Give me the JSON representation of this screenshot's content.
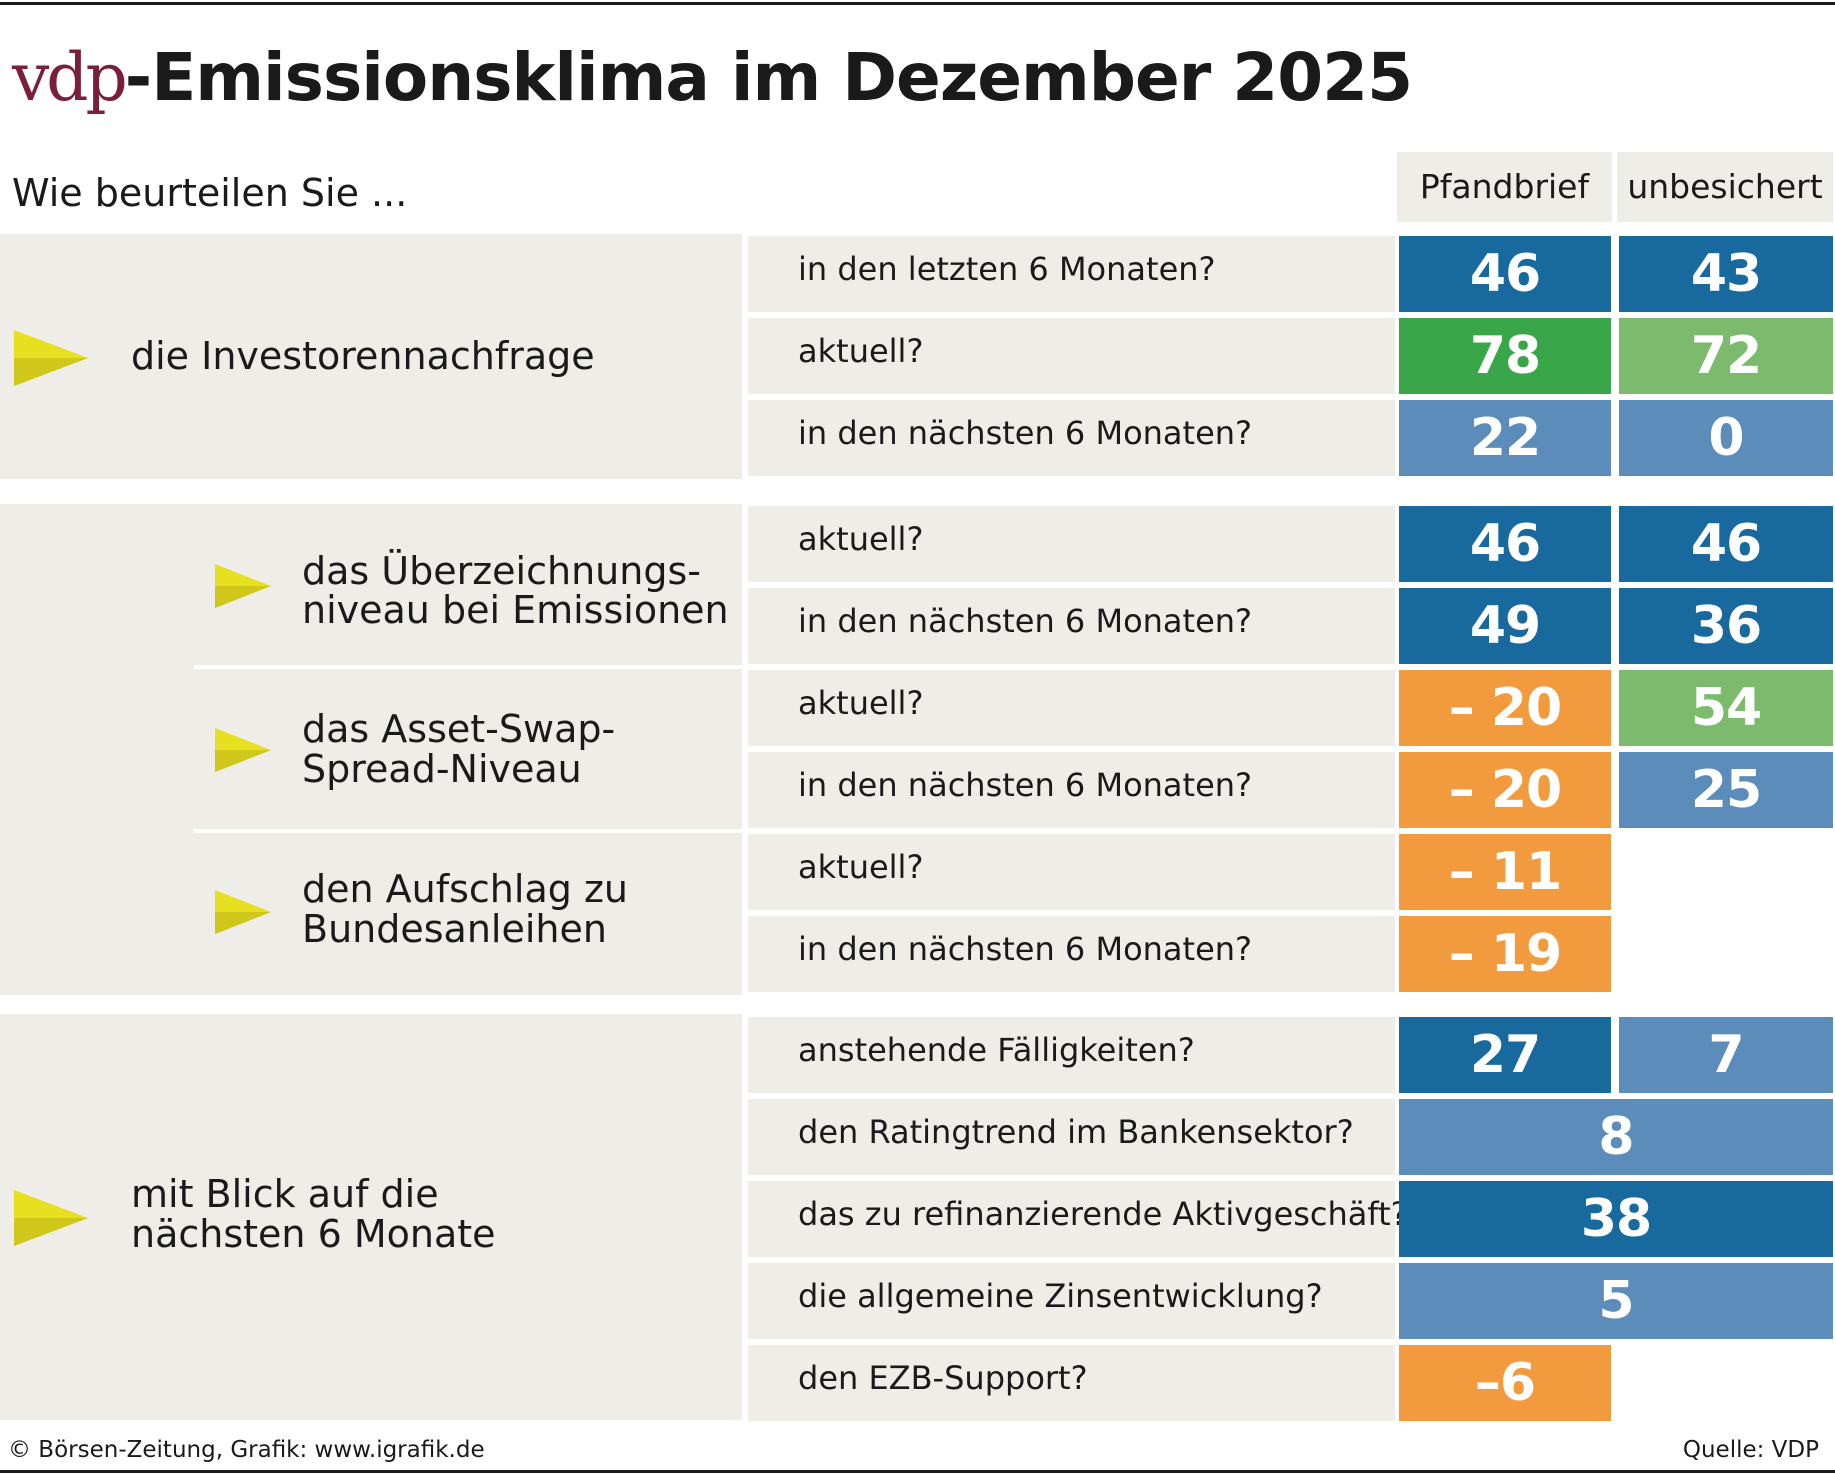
{
  "title": {
    "brand": "vdp",
    "rest": "-Emissionsklima im Dezember 2025"
  },
  "question": "Wie beurteilen Sie ...",
  "columns": [
    "Pfandbrief",
    "unbesichert"
  ],
  "colors": {
    "dark_blue": "#17699e",
    "mid_blue": "#5b8cba",
    "dark_green": "#3aa64a",
    "light_green": "#7cbb6e",
    "orange": "#f29b3e",
    "panel_bg": "#eeede7",
    "arrow_yellow": "#e6e021",
    "brand": "#7a1f3a"
  },
  "groups": [
    {
      "label_lines": [
        "die Investorennachfrage"
      ]
    },
    {
      "label_lines": [
        "das Überzeichnungs-",
        "niveau bei Emissionen"
      ]
    },
    {
      "label_lines": [
        "das Asset-Swap-",
        "Spread-Niveau"
      ]
    },
    {
      "label_lines": [
        "den Aufschlag zu",
        "Bundesanleihen"
      ]
    },
    {
      "label_lines": [
        "mit Blick auf die",
        "nächsten 6 Monate"
      ]
    }
  ],
  "chart_data": {
    "type": "table",
    "title": "vdp-Emissionsklima im Dezember 2025",
    "columns": [
      "Pfandbrief",
      "unbesichert"
    ],
    "rows": [
      {
        "group": "die Investorennachfrage",
        "label": "in den letzten 6 Monaten?",
        "pfandbrief": "46",
        "unbesichert": "43",
        "pf_color": "dark_blue",
        "un_color": "dark_blue"
      },
      {
        "group": "die Investorennachfrage",
        "label": "aktuell?",
        "pfandbrief": "78",
        "unbesichert": "72",
        "pf_color": "dark_green",
        "un_color": "light_green"
      },
      {
        "group": "die Investorennachfrage",
        "label": "in den nächsten 6 Monaten?",
        "pfandbrief": "22",
        "unbesichert": "0",
        "pf_color": "mid_blue",
        "un_color": "mid_blue"
      },
      {
        "group": "das Überzeichnungsniveau bei Emissionen",
        "label": "aktuell?",
        "pfandbrief": "46",
        "unbesichert": "46",
        "pf_color": "dark_blue",
        "un_color": "dark_blue"
      },
      {
        "group": "das Überzeichnungsniveau bei Emissionen",
        "label": "in den nächsten 6 Monaten?",
        "pfandbrief": "49",
        "unbesichert": "36",
        "pf_color": "dark_blue",
        "un_color": "dark_blue"
      },
      {
        "group": "das Asset-Swap-Spread-Niveau",
        "label": "aktuell?",
        "pfandbrief": "– 20",
        "unbesichert": "54",
        "pf_color": "orange",
        "un_color": "light_green"
      },
      {
        "group": "das Asset-Swap-Spread-Niveau",
        "label": "in den nächsten 6 Monaten?",
        "pfandbrief": "– 20",
        "unbesichert": "25",
        "pf_color": "orange",
        "un_color": "mid_blue"
      },
      {
        "group": "den Aufschlag zu Bundesanleihen",
        "label": "aktuell?",
        "pfandbrief": "– 11",
        "unbesichert": null,
        "pf_color": "orange",
        "un_color": null
      },
      {
        "group": "den Aufschlag zu Bundesanleihen",
        "label": "in den nächsten 6 Monaten?",
        "pfandbrief": "– 19",
        "unbesichert": null,
        "pf_color": "orange",
        "un_color": null
      },
      {
        "group": "mit Blick auf die nächsten 6 Monate",
        "label": "anstehende Fälligkeiten?",
        "pfandbrief": "27",
        "unbesichert": "7",
        "pf_color": "dark_blue",
        "un_color": "mid_blue"
      },
      {
        "group": "mit Blick auf die nächsten 6 Monate",
        "label": "den Ratingtrend im Bankensektor?",
        "combined": "8",
        "color": "mid_blue"
      },
      {
        "group": "mit Blick auf die nächsten 6 Monate",
        "label": "das zu refinanzierende Aktivgeschäft?",
        "combined": "38",
        "color": "dark_blue"
      },
      {
        "group": "mit Blick auf die nächsten 6 Monate",
        "label": "die allgemeine Zinsentwicklung?",
        "combined": "5",
        "color": "mid_blue"
      },
      {
        "group": "mit Blick auf die nächsten 6 Monate",
        "label": "den EZB-Support?",
        "pfandbrief": "–6",
        "unbesichert": null,
        "pf_color": "orange",
        "un_color": null
      }
    ]
  },
  "footer": {
    "left": "© Börsen-Zeitung, Grafik: www.igrafik.de",
    "right": "Quelle: VDP"
  }
}
